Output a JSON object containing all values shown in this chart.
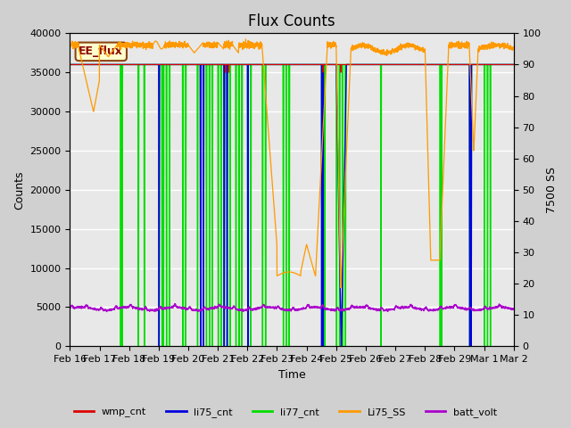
{
  "title": "Flux Counts",
  "xlabel": "Time",
  "ylabel_left": "Counts",
  "ylabel_right": "7500 SS",
  "annotation_text": "EE_flux",
  "ylim_left": [
    0,
    40000
  ],
  "ylim_right": [
    0,
    100
  ],
  "x_tick_labels": [
    "Feb 16",
    "Feb 17",
    "Feb 18",
    "Feb 19",
    "Feb 20",
    "Feb 21",
    "Feb 22",
    "Feb 23",
    "Feb 24",
    "Feb 25",
    "Feb 26",
    "Feb 27",
    "Feb 28",
    "Feb 29",
    "Mar 1",
    "Mar 2"
  ],
  "background_color": "#d0d0d0",
  "plot_bg_color": "#e8e8e8",
  "colors": {
    "wmp_cnt": "#dd0000",
    "li75_cnt": "#0000dd",
    "li77_cnt": "#00dd00",
    "Li75_SS": "#ff9900",
    "batt_volt": "#aa00cc"
  },
  "title_fontsize": 12,
  "axis_fontsize": 9,
  "tick_fontsize": 8,
  "legend_fontsize": 8
}
